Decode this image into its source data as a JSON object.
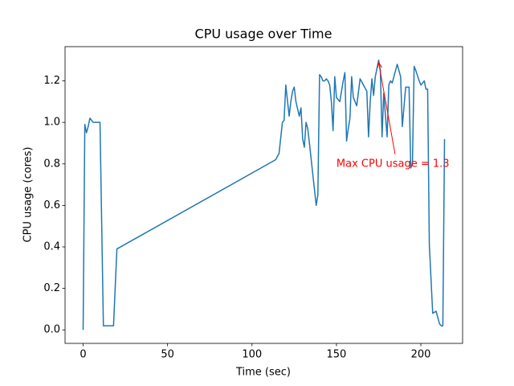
{
  "chart_data": {
    "type": "line",
    "title": "CPU usage over Time",
    "x_label": "Time (sec)",
    "y_label": "CPU usage (cores)",
    "x": [
      0,
      1,
      2,
      3,
      4,
      5,
      6,
      10,
      12,
      14,
      16,
      18,
      20,
      114,
      116,
      118,
      119,
      120,
      122,
      123,
      124,
      125,
      126,
      128,
      129,
      130,
      131,
      132,
      133,
      134,
      136,
      138,
      139,
      140,
      141,
      142,
      143,
      144,
      145,
      146,
      147,
      148,
      149,
      150,
      152,
      154,
      155,
      156,
      157,
      158,
      159,
      160,
      162,
      164,
      166,
      168,
      169,
      170,
      171,
      172,
      173,
      175,
      176,
      177,
      178,
      180,
      181,
      182,
      183,
      184,
      186,
      188,
      189,
      191,
      193,
      194,
      195,
      196,
      197,
      199,
      200,
      202,
      203,
      204,
      205,
      207,
      209,
      211,
      212,
      213,
      214
    ],
    "series": [
      {
        "name": "CPU usage",
        "color": "#1f77b4",
        "values": [
          0.0,
          0.99,
          0.95,
          0.98,
          1.02,
          1.01,
          1.0,
          1.0,
          0.02,
          0.02,
          0.02,
          0.02,
          0.39,
          0.82,
          0.85,
          1.0,
          1.01,
          1.18,
          1.03,
          1.1,
          1.15,
          1.17,
          1.1,
          1.03,
          1.07,
          0.92,
          0.88,
          1.0,
          0.97,
          0.9,
          0.75,
          0.6,
          0.65,
          1.23,
          1.22,
          1.2,
          1.2,
          1.21,
          1.2,
          1.18,
          1.1,
          0.96,
          1.22,
          1.12,
          1.1,
          1.2,
          1.24,
          0.91,
          0.97,
          1.02,
          1.22,
          1.12,
          1.08,
          1.21,
          1.18,
          1.15,
          0.93,
          1.1,
          1.21,
          1.13,
          1.22,
          1.3,
          1.25,
          0.93,
          1.14,
          0.93,
          1.18,
          1.2,
          1.19,
          1.22,
          1.28,
          1.22,
          0.98,
          1.17,
          1.17,
          0.78,
          0.8,
          1.27,
          1.25,
          1.2,
          1.18,
          1.2,
          1.16,
          1.16,
          0.41,
          0.08,
          0.09,
          0.03,
          0.02,
          0.02,
          0.92
        ]
      }
    ],
    "xlim": [
      -10.7,
      224.7
    ],
    "ylim": [
      -0.065,
      1.365
    ],
    "xticks": [
      0,
      50,
      100,
      150,
      200
    ],
    "yticks": [
      {
        "value": 0,
        "label": "0.0"
      },
      {
        "value": 0.2,
        "label": "0.2"
      },
      {
        "value": 0.4,
        "label": "0.4"
      },
      {
        "value": 0.6,
        "label": "0.6"
      },
      {
        "value": 0.8,
        "label": "0.8"
      },
      {
        "value": 1.0,
        "label": "1.0"
      },
      {
        "value": 1.2,
        "label": "1.2"
      }
    ],
    "annotations": [
      {
        "text": "Max CPU usage = 1.3",
        "xy": [
          175,
          1.3
        ],
        "xytext": [
          150,
          0.8
        ],
        "color": "red"
      }
    ]
  }
}
